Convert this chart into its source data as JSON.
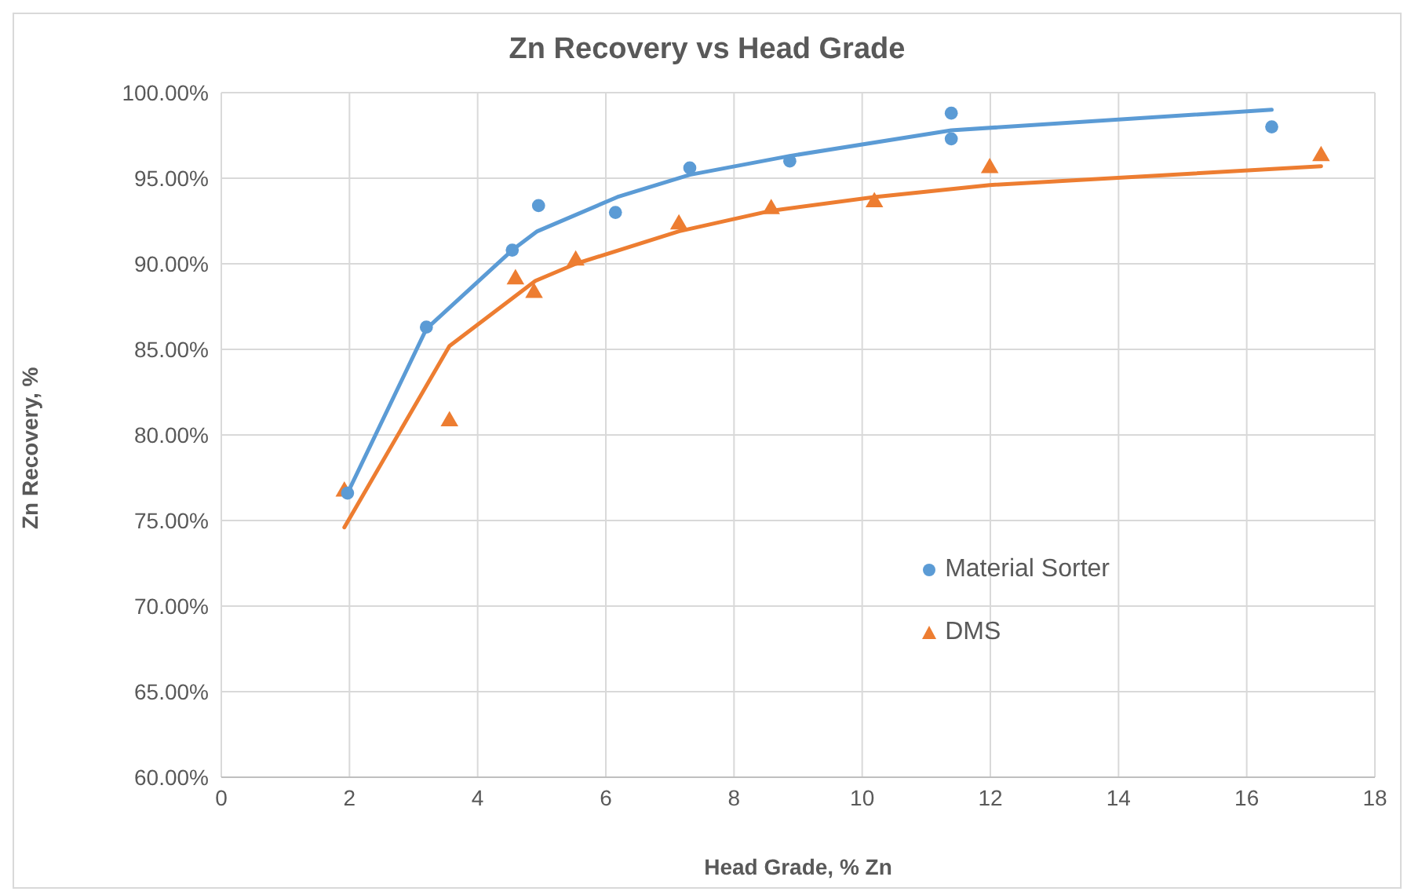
{
  "chart_data": {
    "type": "scatter",
    "title": "Zn Recovery vs Head Grade",
    "xlabel": "Head Grade,  % Zn",
    "ylabel": "Zn Recovery, %",
    "xlim": [
      0,
      18
    ],
    "xticks": [
      0,
      2,
      4,
      6,
      8,
      10,
      12,
      14,
      16,
      18
    ],
    "ylim": [
      60,
      100
    ],
    "yticks": [
      {
        "value": 60,
        "label": "60.00%"
      },
      {
        "value": 65,
        "label": "65.00%"
      },
      {
        "value": 70,
        "label": "70.00%"
      },
      {
        "value": 75,
        "label": "75.00%"
      },
      {
        "value": 80,
        "label": "80.00%"
      },
      {
        "value": 85,
        "label": "85.00%"
      },
      {
        "value": 90,
        "label": "90.00%"
      },
      {
        "value": 95,
        "label": "95.00%"
      },
      {
        "value": 100,
        "label": "100.00%"
      }
    ],
    "grid": true,
    "legend": "right",
    "series": [
      {
        "name": "Material Sorter",
        "marker": "circle",
        "color": "#5b9bd5",
        "x": [
          1.97,
          3.2,
          4.54,
          4.95,
          6.15,
          7.31,
          8.87,
          11.39,
          11.39,
          16.39
        ],
        "values": [
          76.6,
          86.3,
          90.8,
          93.4,
          93.0,
          95.6,
          96.0,
          98.8,
          97.3,
          98.0
        ]
      },
      {
        "name": "DMS",
        "marker": "triangle",
        "color": "#ed7d31",
        "x": [
          1.92,
          3.56,
          4.59,
          4.88,
          5.53,
          7.14,
          8.58,
          10.19,
          11.99,
          17.16
        ],
        "values": [
          76.7,
          80.8,
          89.1,
          88.3,
          90.2,
          92.3,
          93.2,
          93.6,
          95.6,
          96.3
        ]
      },
      {
        "type": "line",
        "line_style": "solid",
        "color": "#5b9bd5",
        "x": [
          1.97,
          3.2,
          4.54,
          4.93,
          6.18,
          7.31,
          8.87,
          11.39,
          16.39
        ],
        "values": [
          76.6,
          86.2,
          90.8,
          91.9,
          93.9,
          95.2,
          96.3,
          97.8,
          99.0
        ]
      },
      {
        "type": "line",
        "line_style": "solid",
        "color": "#ed7d31",
        "x": [
          1.92,
          3.56,
          4.9,
          5.53,
          7.14,
          8.58,
          10.19,
          11.99,
          17.16
        ],
        "values": [
          74.6,
          85.2,
          89.0,
          90.0,
          91.9,
          93.1,
          93.9,
          94.6,
          95.7
        ]
      }
    ]
  }
}
